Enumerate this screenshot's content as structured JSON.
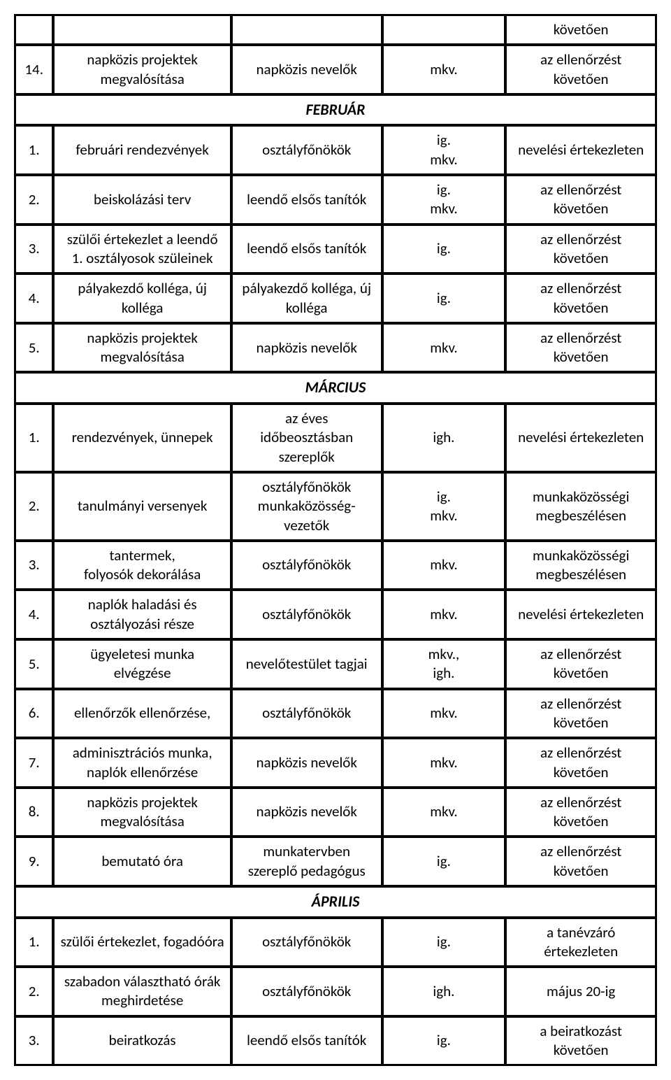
{
  "fontsize_cell": 21,
  "fontsize_section": 22,
  "text_color": "#000000",
  "border_color": "#000000",
  "background_color": "#ffffff",
  "sections": [
    {
      "header": null,
      "rows": [
        {
          "num": "",
          "c1": "",
          "c2": "",
          "c3": "",
          "c4": "követően"
        },
        {
          "num": "14.",
          "c1": "napközis projektek megvalósítása",
          "c2": "napközis nevelők",
          "c3": "mkv.",
          "c4": "az ellenőrzést követően"
        }
      ]
    },
    {
      "header": "FEBRUÁR",
      "rows": [
        {
          "num": "1.",
          "c1": "februári rendezvények",
          "c2": "osztályfőnökök",
          "c3": "ig.\nmkv.",
          "c4": "nevelési értekezleten"
        },
        {
          "num": "2.",
          "c1": "beiskolázási terv",
          "c2": "leendő elsős tanítók",
          "c3": "ig.\nmkv.",
          "c4": "az ellenőrzést követően"
        },
        {
          "num": "3.",
          "c1": "szülői értekezlet  a leendő\n1. osztályosok szüleinek",
          "c2": "leendő elsős tanítók",
          "c3": "ig.",
          "c4": "az ellenőrzést követően"
        },
        {
          "num": "4.",
          "c1": "pályakezdő  kolléga, új kolléga",
          "c2": "pályakezdő kolléga, új kolléga",
          "c3": "ig.",
          "c4": "az ellenőrzést követően"
        },
        {
          "num": "5.",
          "c1": "napközis projektek megvalósítása",
          "c2": "napközis nevelők",
          "c3": "mkv.",
          "c4": "az ellenőrzést követően"
        }
      ]
    },
    {
      "header": "MÁRCIUS",
      "rows": [
        {
          "num": "1.",
          "c1": "rendezvények, ünnepek",
          "c2": "az éves időbeosztásban szereplők",
          "c3": "igh.",
          "c4": "nevelési értekezleten"
        },
        {
          "num": "2.",
          "c1": "tanulmányi versenyek",
          "c2": "osztályfőnökök munkaközösség-vezetők",
          "c3": "ig.\nmkv.",
          "c4": "munkaközösségi megbeszélésen"
        },
        {
          "num": "3.",
          "c1": "tantermek,\nfolyosók dekorálása",
          "c2": "osztályfőnökök",
          "c3": "mkv.",
          "c4": "munkaközösségi megbeszélésen"
        },
        {
          "num": "4.",
          "c1": "naplók haladási és osztályozási része",
          "c2": "osztályfőnökök",
          "c3": "mkv.",
          "c4": "nevelési értekezleten"
        },
        {
          "num": "5.",
          "c1": "ügyeletesi  munka elvégzése",
          "c2": "nevelőtestület tagjai",
          "c3": "mkv.,\nigh.",
          "c4": "az ellenőrzést követően"
        },
        {
          "num": "6.",
          "c1": "ellenőrzők ellenőrzése,",
          "c2": "osztályfőnökök",
          "c3": "mkv.",
          "c4": "az ellenőrzést követően"
        },
        {
          "num": "7.",
          "c1": "adminisztrációs munka, naplók ellenőrzése",
          "c2": "napközis nevelők",
          "c3": "mkv.",
          "c4": "az ellenőrzést követően"
        },
        {
          "num": "8.",
          "c1": "napközis projektek megvalósítása",
          "c2": "napközis nevelők",
          "c3": "mkv.",
          "c4": "az ellenőrzést követően"
        },
        {
          "num": "9.",
          "c1": "bemutató óra",
          "c2": "munkatervben szereplő pedagógus",
          "c3": "ig.",
          "c4": "az ellenőrzést követően"
        }
      ]
    },
    {
      "header": "ÁPRILIS",
      "rows": [
        {
          "num": "1.",
          "c1": "szülői értekezlet, fogadóóra",
          "c2": "osztályfőnökök",
          "c3": "ig.",
          "c4": "a tanévzáró értekezleten"
        },
        {
          "num": "2.",
          "c1": "szabadon választható órák meghirdetése",
          "c2": "osztályfőnökök",
          "c3": "igh.",
          "c4": "május 20-ig"
        },
        {
          "num": "3.",
          "c1": "beiratkozás",
          "c2": "leendő elsős tanítók",
          "c3": "ig.",
          "c4": "a beiratkozást követően"
        }
      ]
    }
  ]
}
